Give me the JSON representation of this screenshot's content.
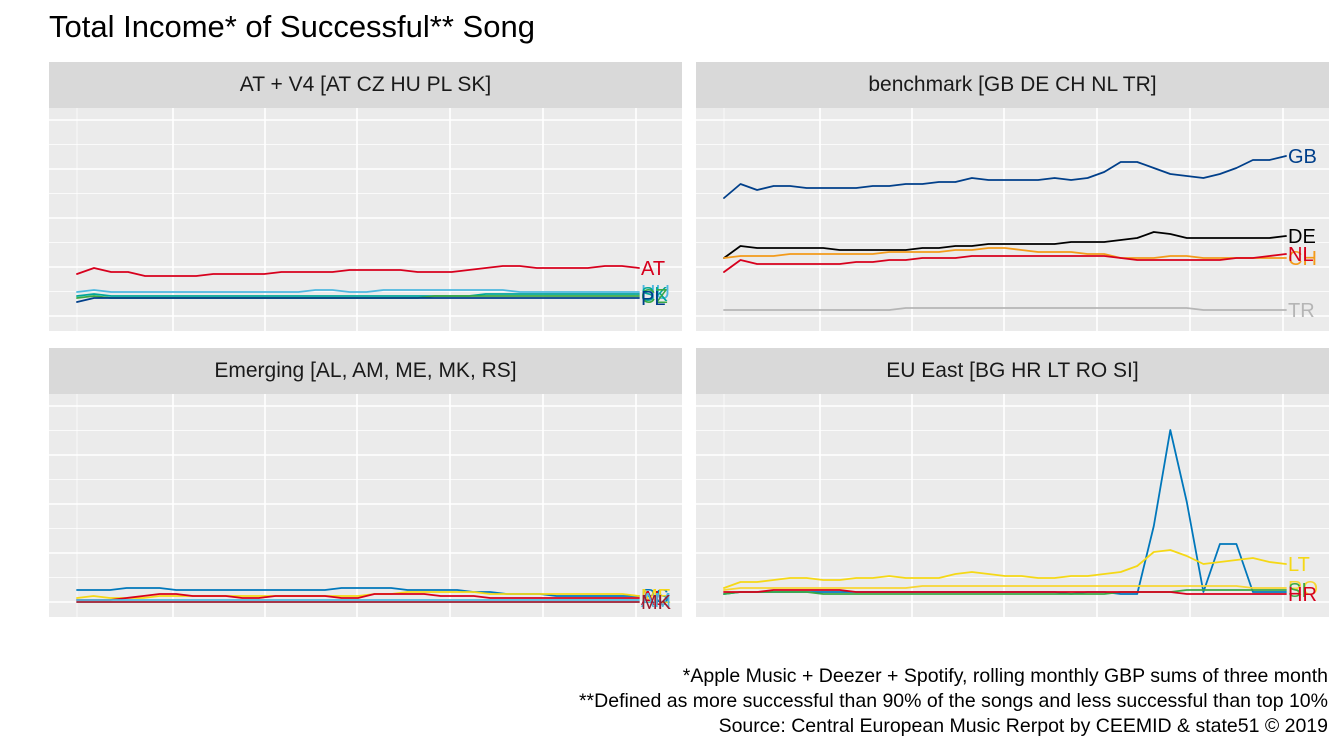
{
  "title": "Total Income* of Successful** Song",
  "captions": [
    "*Apple Music + Deezer + Spotify, rolling monthly GBP sums of three month",
    "**Defined as more successful than 90% of the songs and less successful than top 10%",
    "Source: Central European Music Rerpot by CEEMID & state51 © 2019"
  ],
  "colors": {
    "panel_bg": "#ebebeb",
    "strip_bg": "#d9d9d9",
    "grid": "#ffffff",
    "red": "#d7001d",
    "navy": "#003f8a",
    "teal": "#00a69a",
    "cyan": "#4db8e0",
    "green": "#3aa845",
    "black": "#000000",
    "orange": "#f39a1a",
    "gray": "#b5b5b5",
    "yellow": "#f5d816",
    "blue": "#0077bb",
    "lime": "#9acd32"
  },
  "chart_data": [
    {
      "type": "line",
      "facet": "AT + V4 [AT CZ HU PL SK]",
      "x_range": [
        0,
        32
      ],
      "y_range": [
        0,
        100
      ],
      "grid": true,
      "series": [
        {
          "name": "AT",
          "color": "#d7001d",
          "values": [
            21,
            24,
            22,
            22,
            20,
            20,
            20,
            20,
            21,
            21,
            21,
            21,
            22,
            22,
            22,
            22,
            23,
            23,
            23,
            23,
            22,
            22,
            22,
            23,
            24,
            25,
            25,
            24,
            24,
            24,
            24,
            25,
            25,
            24
          ]
        },
        {
          "name": "HU",
          "color": "#4db8e0",
          "values": [
            12,
            13,
            12,
            12,
            12,
            12,
            12,
            12,
            12,
            12,
            12,
            12,
            12,
            12,
            13,
            13,
            12,
            12,
            13,
            13,
            13,
            13,
            13,
            13,
            13,
            13,
            12,
            12,
            12,
            12,
            12,
            12,
            12,
            12
          ]
        },
        {
          "name": "SK",
          "color": "#00a69a",
          "values": [
            10,
            11,
            10,
            10,
            10,
            10,
            10,
            10,
            10,
            10,
            10,
            10,
            10,
            10,
            10,
            10,
            10,
            10,
            10,
            10,
            10,
            10,
            10,
            10,
            11,
            11,
            11,
            11,
            11,
            11,
            11,
            11,
            11,
            11
          ]
        },
        {
          "name": "CZ",
          "color": "#3aa845",
          "values": [
            9,
            10,
            9,
            9,
            9,
            9,
            9,
            9,
            9,
            9,
            9,
            9,
            9,
            9,
            9,
            9,
            9,
            9,
            9,
            9,
            9,
            10,
            10,
            10,
            10,
            10,
            10,
            10,
            10,
            10,
            10,
            10,
            10,
            10
          ]
        },
        {
          "name": "PL",
          "color": "#003f8a",
          "values": [
            7,
            9,
            9,
            9,
            9,
            9,
            9,
            9,
            9,
            9,
            9,
            9,
            9,
            9,
            9,
            9,
            9,
            9,
            9,
            9,
            9,
            9,
            9,
            9,
            9,
            9,
            9,
            9,
            9,
            9,
            9,
            9,
            9,
            9
          ]
        }
      ],
      "end_labels": [
        "AT",
        "HU",
        "SK",
        "CZ",
        "PL"
      ]
    },
    {
      "type": "line",
      "facet": "benchmark [GB DE CH NL TR]",
      "x_range": [
        0,
        32
      ],
      "y_range": [
        0,
        100
      ],
      "grid": true,
      "series": [
        {
          "name": "GB",
          "color": "#003f8a",
          "values": [
            59,
            66,
            63,
            65,
            65,
            64,
            64,
            64,
            64,
            65,
            65,
            66,
            66,
            67,
            67,
            69,
            68,
            68,
            68,
            68,
            69,
            68,
            69,
            72,
            77,
            77,
            74,
            71,
            70,
            69,
            71,
            74,
            78,
            78,
            80
          ]
        },
        {
          "name": "DE",
          "color": "#000000",
          "values": [
            29,
            35,
            34,
            34,
            34,
            34,
            34,
            33,
            33,
            33,
            33,
            33,
            34,
            34,
            35,
            35,
            36,
            36,
            36,
            36,
            36,
            37,
            37,
            37,
            38,
            39,
            42,
            41,
            39,
            39,
            39,
            39,
            39,
            39,
            40
          ]
        },
        {
          "name": "CH",
          "color": "#f39a1a",
          "values": [
            29,
            30,
            30,
            30,
            31,
            31,
            31,
            31,
            31,
            31,
            32,
            32,
            32,
            32,
            33,
            33,
            34,
            34,
            33,
            32,
            32,
            32,
            31,
            31,
            29,
            29,
            29,
            30,
            30,
            29,
            29,
            29,
            29,
            29,
            29
          ]
        },
        {
          "name": "NL",
          "color": "#d7001d",
          "values": [
            22,
            28,
            26,
            26,
            26,
            26,
            26,
            26,
            27,
            27,
            28,
            28,
            29,
            29,
            29,
            30,
            30,
            30,
            30,
            30,
            30,
            30,
            30,
            30,
            29,
            28,
            28,
            28,
            28,
            28,
            28,
            29,
            29,
            30,
            31
          ]
        },
        {
          "name": "TR",
          "color": "#b5b5b5",
          "values": [
            3,
            3,
            3,
            3,
            3,
            3,
            3,
            3,
            3,
            3,
            3,
            4,
            4,
            4,
            4,
            4,
            4,
            4,
            4,
            4,
            4,
            4,
            4,
            4,
            4,
            4,
            4,
            4,
            4,
            3,
            3,
            3,
            3,
            3,
            3
          ]
        }
      ],
      "end_labels": [
        "GB",
        "DE",
        "CH",
        "NL",
        "TR"
      ]
    },
    {
      "type": "line",
      "facet": "Emerging [AL, AM, ME, MK, RS]",
      "x_range": [
        0,
        32
      ],
      "y_range": [
        0,
        100
      ],
      "grid": true,
      "series": [
        {
          "name": "RS",
          "color": "#0077bb",
          "values": [
            6,
            6,
            6,
            7,
            7,
            7,
            6,
            6,
            6,
            6,
            6,
            6,
            6,
            6,
            6,
            6,
            7,
            7,
            7,
            7,
            6,
            6,
            6,
            6,
            5,
            5,
            4,
            4,
            4,
            3,
            3,
            3,
            3,
            3,
            3
          ]
        },
        {
          "name": "ME",
          "color": "#f5d816",
          "values": [
            2,
            3,
            2,
            2,
            2,
            3,
            3,
            3,
            3,
            3,
            3,
            3,
            3,
            3,
            3,
            3,
            3,
            3,
            4,
            4,
            5,
            5,
            5,
            5,
            5,
            4,
            4,
            4,
            4,
            4,
            4,
            4,
            4,
            4,
            3
          ]
        },
        {
          "name": "AL",
          "color": "#d7001d",
          "values": [
            1,
            1,
            1,
            2,
            3,
            4,
            4,
            3,
            3,
            3,
            2,
            2,
            3,
            3,
            3,
            3,
            2,
            2,
            4,
            4,
            4,
            4,
            3,
            3,
            3,
            2,
            2,
            2,
            2,
            2,
            2,
            2,
            2,
            2,
            2
          ]
        },
        {
          "name": "AM",
          "color": "#4db8e0",
          "values": [
            1,
            1,
            1,
            1,
            1,
            1,
            1,
            1,
            1,
            1,
            1,
            1,
            1,
            1,
            1,
            1,
            1,
            1,
            1,
            1,
            1,
            1,
            1,
            1,
            1,
            1,
            1,
            1,
            1,
            1,
            1,
            1,
            1,
            1,
            1
          ]
        },
        {
          "name": "MK",
          "color": "#9b1b30",
          "values": [
            0,
            0,
            0,
            0,
            0,
            0,
            0,
            0,
            0,
            0,
            0,
            0,
            0,
            0,
            0,
            0,
            0,
            0,
            0,
            0,
            0,
            0,
            0,
            0,
            0,
            0,
            0,
            0,
            0,
            0,
            0,
            0,
            0,
            0,
            0
          ]
        }
      ],
      "end_labels": [
        "RS",
        "ME",
        "AL",
        "AM",
        "MK"
      ]
    },
    {
      "type": "line",
      "facet": "EU East [BG HR LT RO SI]",
      "x_range": [
        0,
        32
      ],
      "y_range": [
        0,
        100
      ],
      "grid": true,
      "series": [
        {
          "name": "BG",
          "color": "#0077bb",
          "values": [
            4,
            5,
            5,
            5,
            5,
            5,
            5,
            5,
            5,
            5,
            5,
            5,
            5,
            5,
            5,
            5,
            5,
            5,
            5,
            5,
            5,
            4,
            5,
            5,
            4,
            4,
            38,
            86,
            50,
            5,
            29,
            29,
            5,
            5,
            5
          ]
        },
        {
          "name": "LT",
          "color": "#f5d816",
          "values": [
            7,
            10,
            10,
            11,
            12,
            12,
            11,
            11,
            12,
            12,
            13,
            12,
            12,
            12,
            14,
            15,
            14,
            13,
            13,
            12,
            12,
            13,
            13,
            14,
            15,
            18,
            25,
            26,
            23,
            19,
            20,
            21,
            22,
            20,
            19
          ]
        },
        {
          "name": "RO",
          "color": "#f7d633",
          "values": [
            6,
            7,
            7,
            7,
            7,
            7,
            7,
            7,
            7,
            7,
            7,
            7,
            8,
            8,
            8,
            8,
            8,
            8,
            8,
            8,
            8,
            8,
            8,
            8,
            8,
            8,
            8,
            8,
            8,
            8,
            8,
            8,
            7,
            7,
            7
          ]
        },
        {
          "name": "SI",
          "color": "#3aa845",
          "values": [
            4,
            5,
            5,
            5,
            5,
            5,
            4,
            4,
            4,
            4,
            4,
            4,
            4,
            4,
            4,
            4,
            4,
            4,
            4,
            4,
            4,
            4,
            4,
            4,
            5,
            5,
            5,
            5,
            6,
            6,
            6,
            6,
            6,
            6,
            6
          ]
        },
        {
          "name": "HR",
          "color": "#d7001d",
          "values": [
            5,
            5,
            5,
            6,
            6,
            6,
            6,
            6,
            5,
            5,
            5,
            5,
            5,
            5,
            5,
            5,
            5,
            5,
            5,
            5,
            5,
            5,
            5,
            5,
            5,
            5,
            5,
            5,
            4,
            4,
            4,
            4,
            4,
            4,
            4
          ]
        }
      ],
      "end_labels": [
        "LT",
        "RO",
        "SI",
        "HR"
      ]
    }
  ]
}
